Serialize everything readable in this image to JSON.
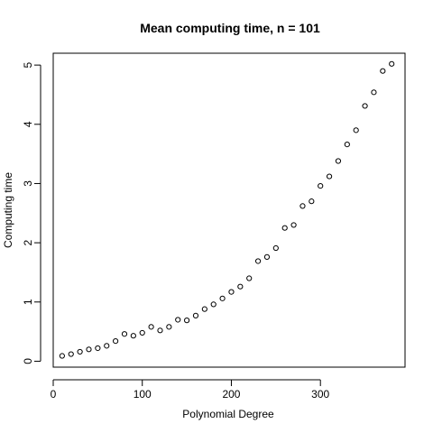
{
  "chart_data": {
    "type": "scatter",
    "title": "Mean computing time, n =  101",
    "xlabel": "Polynomial Degree",
    "ylabel": "Computing time",
    "xlim": [
      0,
      395
    ],
    "ylim": [
      -0.1,
      5.2
    ],
    "x_ticks": [
      0,
      100,
      200,
      300
    ],
    "y_ticks": [
      0,
      1,
      2,
      3,
      4,
      5
    ],
    "grid": false,
    "series": [
      {
        "x": [
          10,
          20,
          30,
          40,
          50,
          60,
          70,
          80,
          90,
          100,
          110,
          120,
          130,
          140,
          150,
          160,
          170,
          180,
          190,
          200,
          210,
          220,
          230,
          240,
          250,
          260,
          270,
          280,
          290,
          300,
          310,
          320,
          330,
          340,
          350,
          360,
          370,
          380
        ],
        "y": [
          0.09,
          0.12,
          0.16,
          0.2,
          0.22,
          0.26,
          0.34,
          0.46,
          0.43,
          0.48,
          0.58,
          0.52,
          0.58,
          0.7,
          0.69,
          0.77,
          0.88,
          0.96,
          1.06,
          1.17,
          1.26,
          1.4,
          1.69,
          1.76,
          1.91,
          2.25,
          2.3,
          2.62,
          2.7,
          2.96,
          3.12,
          3.38,
          3.66,
          3.9,
          4.31,
          4.54,
          4.9,
          5.02
        ]
      }
    ]
  }
}
